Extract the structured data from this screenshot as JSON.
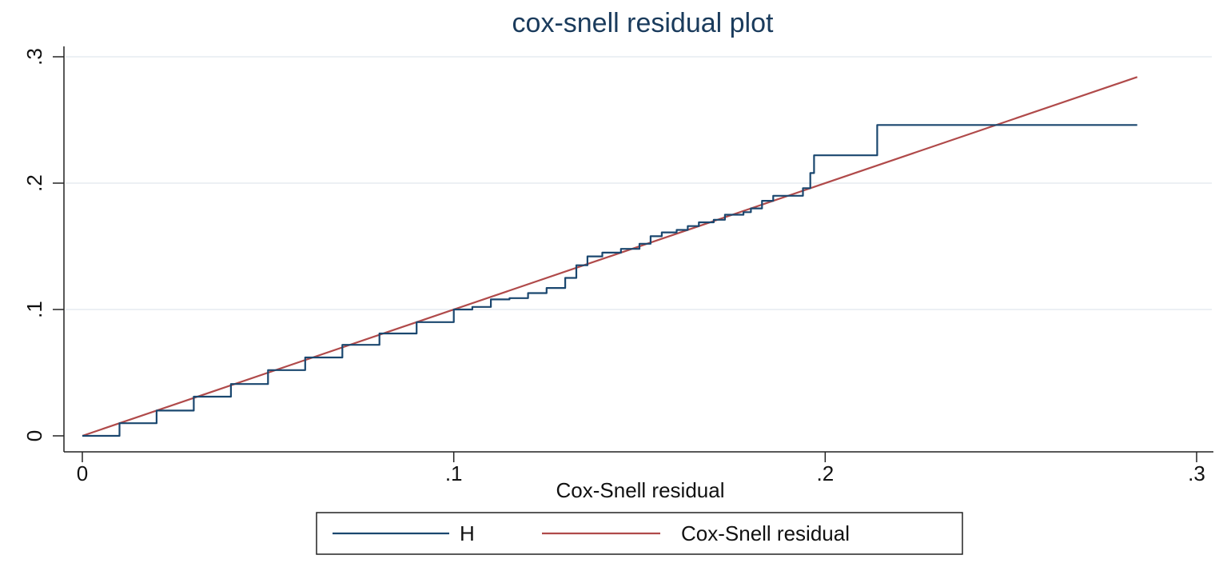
{
  "chart_data": {
    "type": "line",
    "title": "cox-snell residual plot",
    "xlabel": "Cox-Snell residual",
    "ylabel": "",
    "xlim": [
      0,
      0.3
    ],
    "ylim": [
      0,
      0.3
    ],
    "x_ticks": [
      {
        "value": 0,
        "label": "0"
      },
      {
        "value": 0.1,
        "label": ".1"
      },
      {
        "value": 0.2,
        "label": ".2"
      },
      {
        "value": 0.3,
        "label": ".3"
      }
    ],
    "y_ticks": [
      {
        "value": 0,
        "label": "0"
      },
      {
        "value": 0.1,
        "label": ".1"
      },
      {
        "value": 0.2,
        "label": ".2"
      },
      {
        "value": 0.3,
        "label": ".3"
      }
    ],
    "grid": "horizontal",
    "legend": "bottom",
    "series": [
      {
        "name": "H",
        "color": "#1a476f",
        "step": true,
        "points": [
          [
            0,
            0
          ],
          [
            0.01,
            0.01
          ],
          [
            0.02,
            0.02
          ],
          [
            0.03,
            0.031
          ],
          [
            0.04,
            0.041
          ],
          [
            0.05,
            0.052
          ],
          [
            0.06,
            0.062
          ],
          [
            0.07,
            0.072
          ],
          [
            0.08,
            0.081
          ],
          [
            0.09,
            0.09
          ],
          [
            0.1,
            0.1
          ],
          [
            0.105,
            0.102
          ],
          [
            0.11,
            0.108
          ],
          [
            0.115,
            0.109
          ],
          [
            0.12,
            0.113
          ],
          [
            0.125,
            0.117
          ],
          [
            0.13,
            0.125
          ],
          [
            0.133,
            0.135
          ],
          [
            0.136,
            0.142
          ],
          [
            0.14,
            0.145
          ],
          [
            0.145,
            0.148
          ],
          [
            0.15,
            0.152
          ],
          [
            0.153,
            0.158
          ],
          [
            0.156,
            0.161
          ],
          [
            0.16,
            0.163
          ],
          [
            0.163,
            0.166
          ],
          [
            0.166,
            0.169
          ],
          [
            0.17,
            0.171
          ],
          [
            0.173,
            0.175
          ],
          [
            0.178,
            0.177
          ],
          [
            0.18,
            0.18
          ],
          [
            0.183,
            0.186
          ],
          [
            0.186,
            0.19
          ],
          [
            0.193,
            0.19
          ],
          [
            0.194,
            0.196
          ],
          [
            0.196,
            0.208
          ],
          [
            0.197,
            0.222
          ],
          [
            0.214,
            0.222
          ],
          [
            0.214,
            0.246
          ],
          [
            0.284,
            0.246
          ]
        ]
      },
      {
        "name": "Cox-Snell residual",
        "color": "#b04a4a",
        "step": false,
        "points": [
          [
            0,
            0
          ],
          [
            0.284,
            0.284
          ]
        ]
      }
    ]
  }
}
